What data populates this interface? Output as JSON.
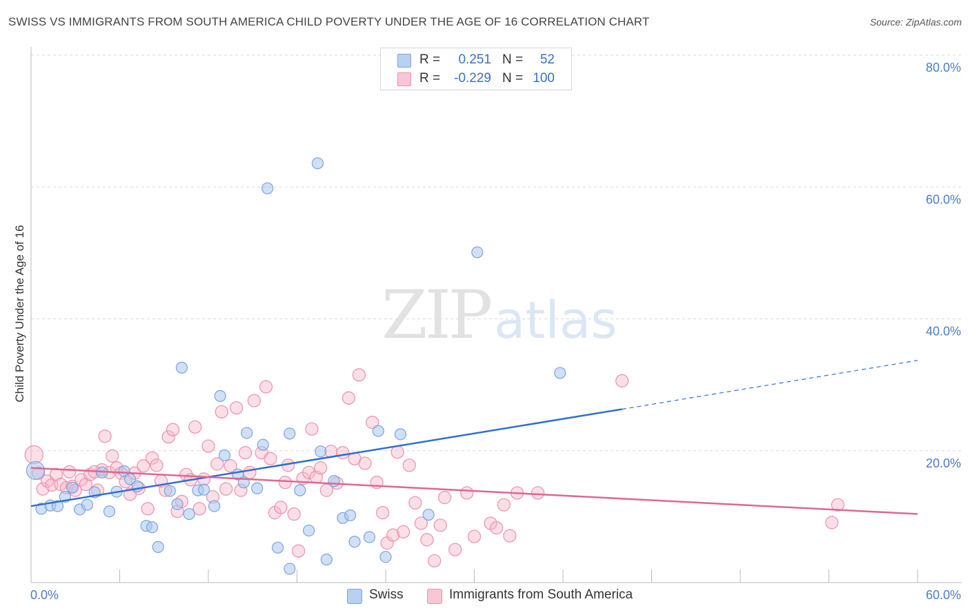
{
  "title": "SWISS VS IMMIGRANTS FROM SOUTH AMERICA CHILD POVERTY UNDER THE AGE OF 16 CORRELATION CHART",
  "source": "Source: ZipAtlas.com",
  "watermark": {
    "zip": "ZIP",
    "atlas": "atlas"
  },
  "colors": {
    "swiss_fill": "#a9c6ef",
    "swiss_stroke": "#7aa3df",
    "swiss_line": "#2f6fd0",
    "sa_fill": "#f6b8ca",
    "sa_stroke": "#ee8fab",
    "sa_line": "#e0668f",
    "tick_text": "#4a7cc9",
    "grid": "#d8d8d8"
  },
  "legend": {
    "rows": [
      {
        "r_label": "R =",
        "r_value": "0.251",
        "n_label": "N =",
        "n_value": "52"
      },
      {
        "r_label": "R =",
        "r_value": "-0.229",
        "n_label": "N =",
        "n_value": "100"
      }
    ]
  },
  "bottom_legend": {
    "swiss": "Swiss",
    "sa": "Immigrants from South America"
  },
  "chart_data": {
    "type": "scatter",
    "title": "SWISS VS IMMIGRANTS FROM SOUTH AMERICA CHILD POVERTY UNDER THE AGE OF 16 CORRELATION CHART",
    "xlabel": "",
    "ylabel": "Child Poverty Under the Age of 16",
    "xlim": [
      0,
      60
    ],
    "ylim": [
      0,
      80
    ],
    "x_tick_labels": [
      "0.0%",
      "60.0%"
    ],
    "y_ticks": [
      20,
      40,
      60,
      80
    ],
    "y_tick_labels": [
      "20.0%",
      "40.0%",
      "60.0%",
      "80.0%"
    ],
    "grid": true,
    "legend_placement": "top-center",
    "series": [
      {
        "name": "Swiss",
        "trend": {
          "x0": 0,
          "y0": 11.6,
          "x1": 40,
          "y1": 26.3,
          "dashed_to_x": 60,
          "dashed_to_y": 33.7
        },
        "points": [
          [
            0.3,
            17.0
          ],
          [
            0.7,
            11.2
          ],
          [
            1.3,
            11.7
          ],
          [
            1.8,
            11.6
          ],
          [
            2.3,
            13.0
          ],
          [
            2.8,
            14.4
          ],
          [
            3.3,
            11.1
          ],
          [
            3.8,
            11.8
          ],
          [
            4.3,
            13.7
          ],
          [
            4.8,
            16.7
          ],
          [
            5.3,
            10.8
          ],
          [
            5.8,
            13.8
          ],
          [
            6.3,
            16.9
          ],
          [
            6.7,
            15.7
          ],
          [
            7.2,
            14.6
          ],
          [
            7.8,
            8.6
          ],
          [
            8.2,
            8.4
          ],
          [
            8.6,
            5.4
          ],
          [
            9.4,
            13.9
          ],
          [
            9.9,
            11.9
          ],
          [
            10.2,
            32.6
          ],
          [
            10.7,
            10.4
          ],
          [
            11.3,
            14.0
          ],
          [
            11.7,
            14.1
          ],
          [
            12.4,
            11.6
          ],
          [
            12.8,
            28.3
          ],
          [
            13.1,
            19.3
          ],
          [
            14.0,
            16.4
          ],
          [
            14.4,
            15.2
          ],
          [
            14.6,
            22.7
          ],
          [
            15.3,
            14.3
          ],
          [
            15.7,
            20.9
          ],
          [
            16.0,
            59.8
          ],
          [
            16.7,
            5.3
          ],
          [
            17.5,
            22.6
          ],
          [
            17.5,
            2.1
          ],
          [
            18.2,
            14.0
          ],
          [
            18.8,
            7.9
          ],
          [
            19.4,
            63.6
          ],
          [
            19.6,
            19.9
          ],
          [
            20.0,
            3.5
          ],
          [
            20.5,
            15.4
          ],
          [
            21.1,
            9.8
          ],
          [
            21.6,
            10.2
          ],
          [
            21.9,
            6.2
          ],
          [
            22.9,
            6.9
          ],
          [
            23.5,
            23.0
          ],
          [
            24.0,
            3.9
          ],
          [
            25.0,
            22.5
          ],
          [
            26.9,
            10.3
          ],
          [
            30.2,
            50.1
          ],
          [
            35.8,
            31.8
          ]
        ]
      },
      {
        "name": "Immigrants from South America",
        "trend": {
          "x0": 0,
          "y0": 17.4,
          "x1": 60,
          "y1": 10.4
        },
        "points": [
          [
            0.2,
            19.4
          ],
          [
            0.5,
            16.6
          ],
          [
            0.8,
            14.2
          ],
          [
            1.1,
            15.4
          ],
          [
            1.4,
            14.8
          ],
          [
            1.7,
            16.4
          ],
          [
            2.0,
            14.9
          ],
          [
            2.4,
            14.4
          ],
          [
            2.6,
            16.8
          ],
          [
            2.8,
            14.6
          ],
          [
            3.0,
            14.0
          ],
          [
            3.4,
            15.6
          ],
          [
            3.7,
            14.9
          ],
          [
            4.0,
            16.4
          ],
          [
            4.3,
            16.8
          ],
          [
            4.5,
            14.0
          ],
          [
            4.8,
            17.1
          ],
          [
            5.0,
            22.2
          ],
          [
            5.3,
            16.7
          ],
          [
            5.5,
            19.2
          ],
          [
            5.8,
            17.4
          ],
          [
            6.1,
            16.6
          ],
          [
            6.4,
            15.3
          ],
          [
            6.7,
            13.4
          ],
          [
            7.0,
            16.6
          ],
          [
            7.3,
            14.3
          ],
          [
            7.6,
            17.7
          ],
          [
            7.9,
            11.2
          ],
          [
            8.2,
            18.9
          ],
          [
            8.5,
            17.8
          ],
          [
            8.8,
            15.4
          ],
          [
            9.1,
            14.0
          ],
          [
            9.3,
            22.1
          ],
          [
            9.6,
            23.2
          ],
          [
            9.9,
            10.8
          ],
          [
            10.2,
            12.3
          ],
          [
            10.5,
            16.4
          ],
          [
            10.8,
            15.6
          ],
          [
            11.1,
            23.6
          ],
          [
            11.4,
            11.2
          ],
          [
            11.7,
            15.7
          ],
          [
            12.0,
            20.7
          ],
          [
            12.3,
            13.0
          ],
          [
            12.6,
            18.0
          ],
          [
            12.9,
            25.9
          ],
          [
            13.2,
            14.2
          ],
          [
            13.5,
            17.7
          ],
          [
            13.9,
            26.5
          ],
          [
            14.2,
            14.0
          ],
          [
            14.5,
            19.7
          ],
          [
            14.8,
            16.7
          ],
          [
            15.1,
            27.6
          ],
          [
            15.6,
            19.7
          ],
          [
            15.9,
            29.7
          ],
          [
            16.2,
            18.8
          ],
          [
            16.5,
            10.6
          ],
          [
            16.9,
            11.4
          ],
          [
            17.2,
            15.2
          ],
          [
            17.4,
            17.8
          ],
          [
            17.8,
            10.4
          ],
          [
            18.1,
            4.8
          ],
          [
            18.4,
            15.8
          ],
          [
            18.8,
            16.7
          ],
          [
            19.0,
            23.3
          ],
          [
            19.3,
            16.0
          ],
          [
            19.6,
            17.4
          ],
          [
            20.0,
            14.0
          ],
          [
            20.3,
            19.9
          ],
          [
            20.7,
            15.1
          ],
          [
            21.1,
            19.7
          ],
          [
            21.5,
            28.0
          ],
          [
            21.9,
            18.8
          ],
          [
            22.2,
            31.5
          ],
          [
            22.6,
            18.1
          ],
          [
            23.1,
            24.3
          ],
          [
            23.4,
            15.2
          ],
          [
            23.8,
            10.6
          ],
          [
            24.1,
            6.0
          ],
          [
            24.5,
            7.2
          ],
          [
            24.8,
            19.8
          ],
          [
            25.2,
            7.7
          ],
          [
            25.6,
            17.8
          ],
          [
            26.0,
            12.1
          ],
          [
            26.4,
            9.0
          ],
          [
            26.8,
            6.5
          ],
          [
            27.3,
            3.3
          ],
          [
            27.7,
            8.7
          ],
          [
            28.0,
            12.9
          ],
          [
            28.7,
            5.0
          ],
          [
            29.5,
            13.6
          ],
          [
            30.0,
            7.0
          ],
          [
            31.1,
            9.0
          ],
          [
            31.5,
            8.3
          ],
          [
            32.0,
            11.8
          ],
          [
            32.4,
            7.1
          ],
          [
            32.9,
            13.6
          ],
          [
            34.3,
            13.6
          ],
          [
            40.0,
            30.6
          ],
          [
            54.2,
            9.1
          ],
          [
            54.6,
            11.8
          ]
        ]
      }
    ]
  }
}
